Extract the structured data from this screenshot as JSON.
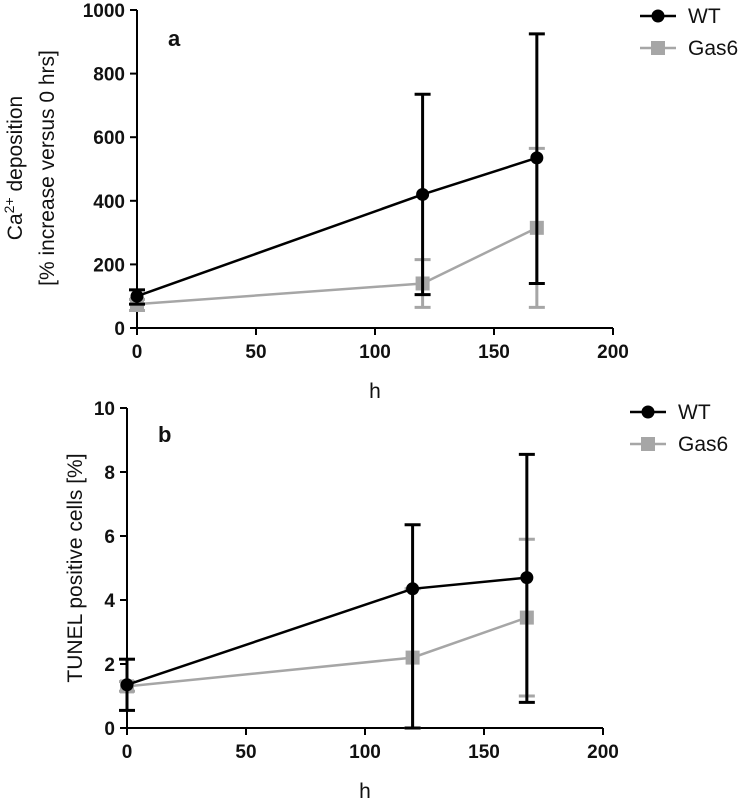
{
  "chart_data": [
    {
      "type": "line",
      "panel_label": "a",
      "xlabel": "h",
      "ylabel_line1": "Ca<sup>2+</sup> deposition",
      "ylabel_base": "Ca",
      "ylabel_sup": "2+",
      "ylabel_rest": " deposition",
      "ylabel_line2": "[% increase versus 0 hrs]",
      "xlim": [
        0,
        200
      ],
      "ylim": [
        0,
        1000
      ],
      "xticks": [
        0,
        50,
        100,
        150,
        200
      ],
      "yticks": [
        0,
        200,
        400,
        600,
        800,
        1000
      ],
      "legend_position": "top-right",
      "grid": false,
      "series": [
        {
          "name": "WT",
          "color": "#000000",
          "marker": "circle",
          "x": [
            0,
            120,
            168
          ],
          "y": [
            100,
            420,
            535
          ],
          "err_low": [
            75,
            105,
            140
          ],
          "err_high": [
            120,
            735,
            925
          ]
        },
        {
          "name": "Gas6",
          "color": "#a6a6a6",
          "marker": "square",
          "x": [
            0,
            120,
            168
          ],
          "y": [
            75,
            140,
            315
          ],
          "err_low": [
            55,
            65,
            65
          ],
          "err_high": [
            90,
            215,
            565
          ]
        }
      ]
    },
    {
      "type": "line",
      "panel_label": "b",
      "xlabel": "h",
      "ylabel": "TUNEL positive cells [%]",
      "xlim": [
        0,
        200
      ],
      "ylim": [
        0,
        10
      ],
      "xticks": [
        0,
        50,
        100,
        150,
        200
      ],
      "yticks": [
        0,
        2,
        4,
        6,
        8,
        10
      ],
      "legend_position": "top-right",
      "grid": false,
      "series": [
        {
          "name": "WT",
          "color": "#000000",
          "marker": "circle",
          "x": [
            0,
            120,
            168
          ],
          "y": [
            1.35,
            4.35,
            4.7
          ],
          "err_low": [
            0.55,
            0.0,
            0.8
          ],
          "err_high": [
            2.15,
            6.35,
            8.55
          ]
        },
        {
          "name": "Gas6",
          "color": "#a6a6a6",
          "marker": "square",
          "x": [
            0,
            120,
            168
          ],
          "y": [
            1.3,
            2.2,
            3.45
          ],
          "err_low": [
            1.15,
            0.0,
            1.0
          ],
          "err_high": [
            1.45,
            4.35,
            5.9
          ]
        }
      ]
    }
  ]
}
